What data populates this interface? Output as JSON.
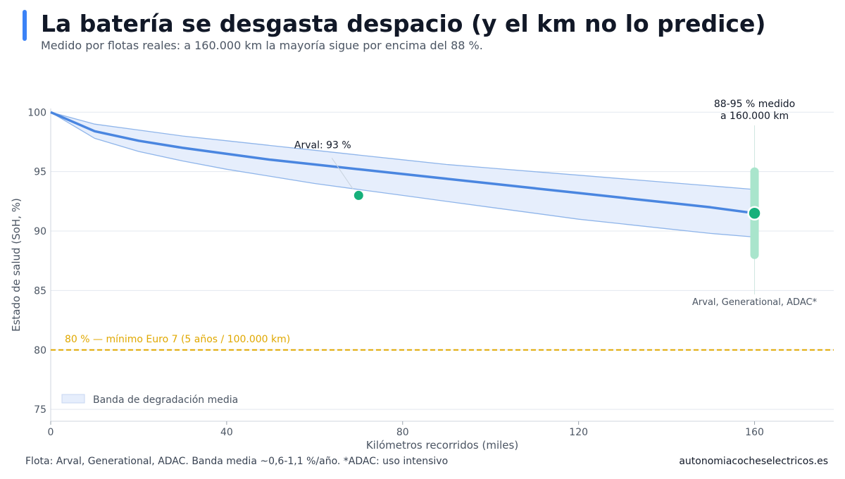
{
  "header": {
    "title": "La batería se desgasta despacio (y el km no lo predice)",
    "subtitle": "Medido por flotas reales: a 160.000 km la mayoría sigue por encima del 88 %."
  },
  "colors": {
    "accent": "#3b82f6",
    "line": "#4a86e0",
    "band_fill": "#e6eefc",
    "band_edge": "#8fb5ea",
    "point": "#16b07a",
    "range_bar": "#a9e5cc",
    "reference": "#e0a800"
  },
  "chart_data": {
    "type": "line",
    "xlabel": "Kilómetros recorridos (miles)",
    "ylabel": "Estado de salud (SoH, %)",
    "xlim": [
      0,
      178
    ],
    "ylim": [
      74,
      101.5
    ],
    "x_ticks": [
      0,
      40,
      80,
      120,
      160
    ],
    "y_ticks": [
      75,
      80,
      85,
      90,
      95,
      100
    ],
    "grid": "horizontal",
    "series": [
      {
        "name": "",
        "x": [
          0,
          10,
          20,
          30,
          40,
          50,
          60,
          70,
          80,
          90,
          100,
          110,
          120,
          130,
          140,
          150,
          160
        ],
        "values": [
          100,
          98.4,
          97.6,
          97.0,
          96.5,
          96.0,
          95.6,
          95.2,
          94.8,
          94.4,
          94.0,
          93.6,
          93.2,
          92.8,
          92.4,
          92.0,
          91.5
        ]
      }
    ],
    "band": {
      "name": "Banda de degradación media",
      "x": [
        0,
        10,
        20,
        30,
        40,
        50,
        60,
        70,
        80,
        90,
        100,
        110,
        120,
        130,
        140,
        150,
        160
      ],
      "upper": [
        100,
        99.0,
        98.5,
        98.0,
        97.6,
        97.2,
        96.8,
        96.4,
        96.0,
        95.6,
        95.3,
        95.0,
        94.7,
        94.4,
        94.1,
        93.8,
        93.5
      ],
      "lower": [
        100,
        97.8,
        96.7,
        95.9,
        95.2,
        94.6,
        94.0,
        93.5,
        93.0,
        92.5,
        92.0,
        91.5,
        91.0,
        90.6,
        90.2,
        89.8,
        89.5
      ]
    },
    "points": [
      {
        "x": 70,
        "y": 93,
        "label": "Arval: 93 %"
      },
      {
        "x": 160,
        "y": 91.5,
        "label": ""
      }
    ],
    "range_marker": {
      "x": 160,
      "low": 88,
      "high": 95,
      "label_line1": "88-95 % medido",
      "label_line2": "a 160.000 km",
      "source_label": "Arval, Generational, ADAC*"
    },
    "reference_line": {
      "y": 80,
      "label": "80 % — mínimo Euro 7 (5 años / 100.000 km)"
    },
    "legend": {
      "position": "bottom-left",
      "entries": [
        "Banda de degradación media"
      ]
    }
  },
  "footer": {
    "source": "Flota: Arval, Generational, ADAC. Banda media ~0,6-1,1 %/año. *ADAC: uso intensivo",
    "site": "autonomiacocheselectricos.es"
  }
}
